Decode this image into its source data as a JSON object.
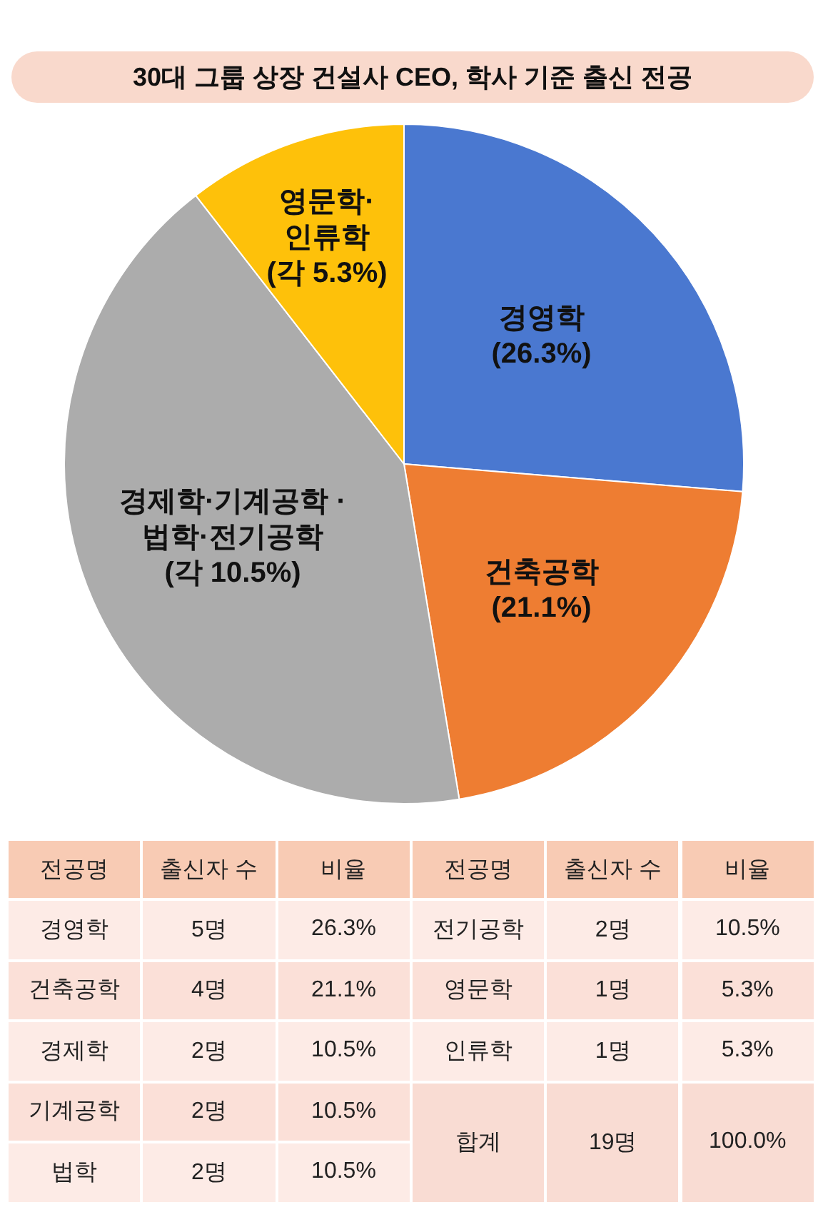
{
  "chart_data": [
    {
      "type": "pie",
      "title": "30대 그룹 상장 건설사 CEO, 학사 기준 출신 전공",
      "categories": [
        "경영학",
        "건축공학",
        "경제학·기계공학 · 법학·전기공학",
        "영문학·인류학"
      ],
      "values": [
        26.3,
        21.1,
        42.1,
        10.5
      ],
      "value_labels": [
        "(26.3%)",
        "(21.1%)",
        "(각 10.5%)",
        "(각 5.3%)"
      ],
      "colors": [
        "#4a78d0",
        "#ee7d32",
        "#acacac",
        "#fec10a"
      ]
    },
    {
      "type": "other",
      "annotations": [
        "전공명",
        "출신자 수",
        "비율",
        "전공명",
        "출신자 수",
        "비율",
        "경영학",
        "5명",
        "26.3%",
        "전기공학",
        "2명",
        "10.5%",
        "건축공학",
        "4명",
        "21.1%",
        "영문학",
        "1명",
        "5.3%",
        "경제학",
        "2명",
        "10.5%",
        "인류학",
        "1명",
        "5.3%",
        "기계공학",
        "2명",
        "10.5%",
        "합계",
        "19명",
        "100.0%",
        "법학",
        "2명",
        "10.5%"
      ]
    }
  ]
}
